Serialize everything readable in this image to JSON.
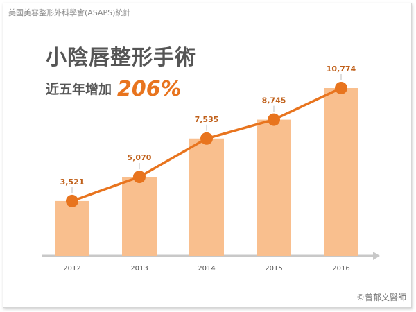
{
  "source_text": "美國美容整形外科學會(ASAPS)統計",
  "title": "小陰唇整形手術",
  "subtitle": "近五年增加",
  "growth": "206%",
  "credit": "©曾郁文醫師",
  "colors": {
    "bar": "#f9bf8e",
    "line": "#e8741e",
    "label": "#c0601a",
    "axis": "#c8c8c8"
  },
  "chart_data": {
    "type": "bar",
    "categories": [
      "2012",
      "2013",
      "2014",
      "2015",
      "2016"
    ],
    "values": [
      3521,
      5070,
      7535,
      8745,
      10774
    ],
    "value_labels": [
      "3,521",
      "5,070",
      "7,535",
      "8,745",
      "10,774"
    ],
    "line_overlay": true,
    "ylim": [
      0,
      12000
    ],
    "grid": false,
    "legend": "none"
  }
}
